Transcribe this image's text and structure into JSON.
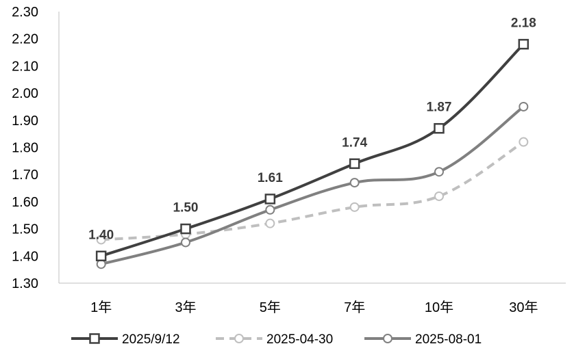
{
  "chart_data": {
    "type": "line",
    "categories": [
      "1年",
      "3年",
      "5年",
      "7年",
      "10年",
      "30年"
    ],
    "ylim": [
      1.3,
      2.3
    ],
    "y_ticks": [
      "1.30",
      "1.40",
      "1.50",
      "1.60",
      "1.70",
      "1.80",
      "1.90",
      "2.00",
      "2.10",
      "2.20",
      "2.30"
    ],
    "grid": false,
    "legend_position": "bottom",
    "series": [
      {
        "name": "2025/9/12",
        "values": [
          1.4,
          1.5,
          1.61,
          1.74,
          1.87,
          2.18
        ],
        "data_labels": [
          "1.40",
          "1.50",
          "1.61",
          "1.74",
          "1.87",
          "2.18"
        ],
        "color": "#404040",
        "marker": "square",
        "dash": "solid"
      },
      {
        "name": "2025-04-30",
        "values": [
          1.46,
          1.48,
          1.52,
          1.58,
          1.62,
          1.82
        ],
        "color": "#bfbfbf",
        "marker": "circle",
        "dash": "dashed"
      },
      {
        "name": "2025-08-01",
        "values": [
          1.37,
          1.45,
          1.57,
          1.67,
          1.71,
          1.95
        ],
        "color": "#808080",
        "marker": "circle",
        "dash": "solid"
      }
    ]
  }
}
